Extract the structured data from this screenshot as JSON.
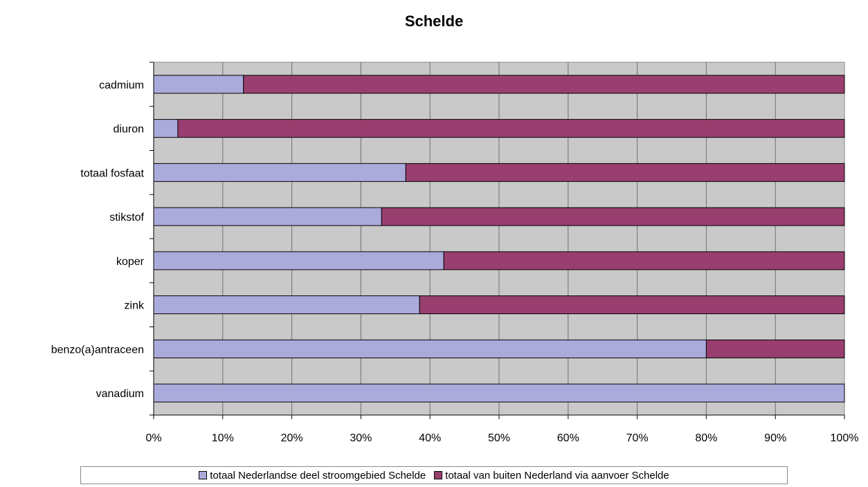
{
  "chart_data": {
    "type": "bar",
    "orientation": "horizontal",
    "stacked": "percent",
    "title": "Schelde",
    "categories": [
      "cadmium",
      "diuron",
      "totaal fosfaat",
      "stikstof",
      "koper",
      "zink",
      "benzo(a)antraceen",
      "vanadium"
    ],
    "series": [
      {
        "name": "totaal Nederlandse deel stroomgebied Schelde",
        "color": "#aaaadb",
        "values": [
          13,
          3.5,
          36.5,
          33,
          42,
          38.5,
          80,
          100
        ]
      },
      {
        "name": "totaal van buiten Nederland via aanvoer Schelde",
        "color": "#993f6f",
        "values": [
          87,
          96.5,
          63.5,
          67,
          58,
          61.5,
          20,
          0
        ]
      }
    ],
    "xticks": [
      "0%",
      "10%",
      "20%",
      "30%",
      "40%",
      "50%",
      "60%",
      "70%",
      "80%",
      "90%",
      "100%"
    ],
    "xlim": [
      0,
      100
    ],
    "grid": "vertical",
    "plot_background": "#c9c9c9",
    "legend_position": "bottom"
  }
}
